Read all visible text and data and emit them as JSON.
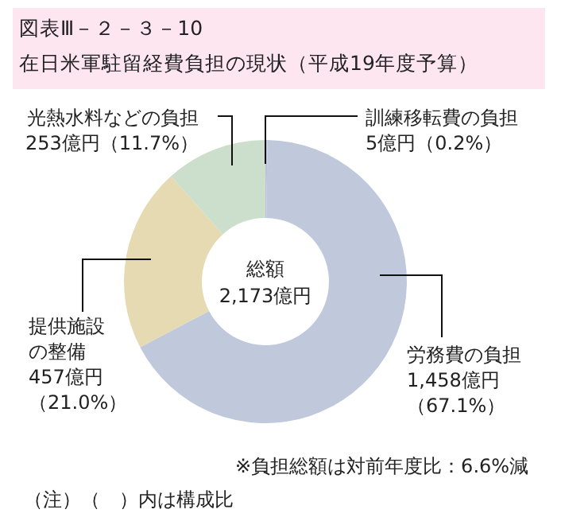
{
  "chart_data": {
    "type": "donut",
    "title": "図表Ⅲ－２－３－10",
    "subtitle": "在日米軍駐留経費負担の現状（平成19年度予算）",
    "categories": [
      "訓練移転費の負担",
      "労務費の負担",
      "提供施設の整備",
      "光熱水料などの負担"
    ],
    "values": [
      5,
      1458,
      457,
      253
    ],
    "colors": [
      "#b9c2d9",
      "#c0c8dc",
      "#e6dab2",
      "#ccdfcc"
    ],
    "value_labels": [
      "5億円（0.2%）",
      "1,458億円（67.1%）",
      "457億円（21.0%）",
      "253億円（11.7%）"
    ],
    "annotations": [
      "総額",
      "2,173億円",
      "※負担総額は対前年度比：6.6%減",
      "（注）（　）内は構成比"
    ]
  }
}
